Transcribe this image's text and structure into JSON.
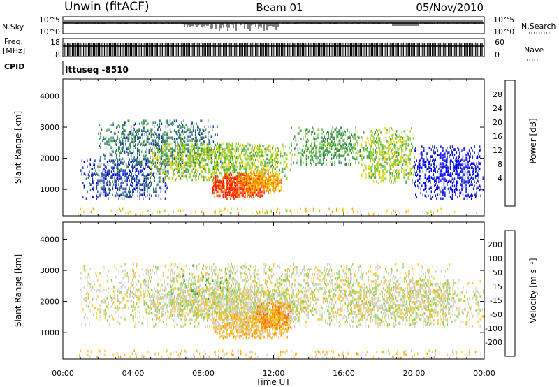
{
  "header": {
    "radar": "Unwin (fitACF)",
    "beam": "Beam 01",
    "date": "05/Nov/2010"
  },
  "top_panels": {
    "nsky_label": "N.Sky",
    "nsearch_label": "N.Search",
    "noise_ticks": [
      "10^5",
      "10^0"
    ],
    "freq_label_1": "Freq.",
    "freq_label_2": "[MHz]",
    "freq_ticks": [
      "18",
      "8"
    ],
    "nave_label": "Nave",
    "nave_ticks": [
      "60",
      "0"
    ],
    "cpid_label": "CPID",
    "cpid_value": "Ittuseq -8510"
  },
  "chart_data": [
    {
      "type": "heatmap",
      "name": "power",
      "ylabel": "Slant Range [km]",
      "ylim": [
        150,
        4550
      ],
      "yticks": [
        1000,
        2000,
        3000,
        4000
      ],
      "xlim": [
        0,
        24
      ],
      "colorbar": {
        "label": "Power [dB]",
        "ticks": [
          "28",
          "24",
          "20",
          "16",
          "12",
          "8",
          "4"
        ],
        "colors": [
          "#0000ff",
          "#1e3ca8",
          "#2f7a5a",
          "#3fa050",
          "#8fd02a",
          "#ffd000",
          "#ffa000",
          "#ff7000",
          "#ff2000"
        ]
      },
      "blobs": [
        {
          "t0": 1.0,
          "t1": 6.0,
          "r0": 700,
          "r1": 2000,
          "c": 1,
          "d": 0.35
        },
        {
          "t0": 2.0,
          "t1": 9.0,
          "r0": 1800,
          "r1": 3200,
          "c": 2,
          "d": 0.3
        },
        {
          "t0": 5.0,
          "t1": 13.0,
          "r0": 1300,
          "r1": 2500,
          "c": 4,
          "d": 0.45
        },
        {
          "t0": 8.5,
          "t1": 11.5,
          "r0": 700,
          "r1": 1500,
          "c": 8,
          "d": 0.8
        },
        {
          "t0": 10.0,
          "t1": 12.5,
          "r0": 900,
          "r1": 1600,
          "c": 6,
          "d": 0.6
        },
        {
          "t0": 13.0,
          "t1": 17.0,
          "r0": 1800,
          "r1": 3000,
          "c": 3,
          "d": 0.35
        },
        {
          "t0": 17.0,
          "t1": 20.0,
          "r0": 1200,
          "r1": 3000,
          "c": 4,
          "d": 0.4
        },
        {
          "t0": 20.0,
          "t1": 24.0,
          "r0": 700,
          "r1": 2400,
          "c": 0,
          "d": 0.35
        },
        {
          "t0": 0.5,
          "t1": 24.0,
          "r0": 180,
          "r1": 400,
          "c": 5,
          "d": 0.08
        }
      ]
    },
    {
      "type": "heatmap",
      "name": "velocity",
      "xlabel": "Time UT",
      "ylabel": "Slant Range [km]",
      "ylim": [
        150,
        4550
      ],
      "yticks": [
        1000,
        2000,
        3000,
        4000
      ],
      "xlim": [
        0,
        24
      ],
      "xticks": [
        "00:00",
        "04:00",
        "08:00",
        "12:00",
        "16:00",
        "20:00",
        "00:00"
      ],
      "colorbar": {
        "label": "Velocity [m s⁻¹]",
        "ticks": [
          "200",
          "100",
          "50",
          "15",
          "-15",
          "-50",
          "-100",
          "-200"
        ],
        "colors": [
          "#1a2fb0",
          "#2a6a50",
          "#3b9a45",
          "#8fd34a",
          "#cfcfcf",
          "#ffc22a",
          "#ff9a00",
          "#ff6a00",
          "#ff1a00"
        ]
      },
      "blobs": [
        {
          "t0": 1.0,
          "t1": 22.0,
          "r0": 1200,
          "r1": 3200,
          "c": 4,
          "d": 0.25
        },
        {
          "t0": 5.0,
          "t1": 14.0,
          "r0": 1400,
          "r1": 2400,
          "c": 4,
          "d": 0.45
        },
        {
          "t0": 8.5,
          "t1": 13.0,
          "r0": 800,
          "r1": 1700,
          "c": 5,
          "d": 0.6
        },
        {
          "t0": 11.0,
          "t1": 13.0,
          "r0": 1100,
          "r1": 2000,
          "c": 6,
          "d": 0.55
        },
        {
          "t0": 6.0,
          "t1": 10.0,
          "r0": 1800,
          "r1": 3200,
          "c": 3,
          "d": 0.08
        },
        {
          "t0": 0.5,
          "t1": 24.0,
          "r0": 180,
          "r1": 450,
          "c": 5,
          "d": 0.12
        },
        {
          "t0": 16.0,
          "t1": 24.0,
          "r0": 1200,
          "r1": 2700,
          "c": 4,
          "d": 0.3
        }
      ]
    }
  ]
}
